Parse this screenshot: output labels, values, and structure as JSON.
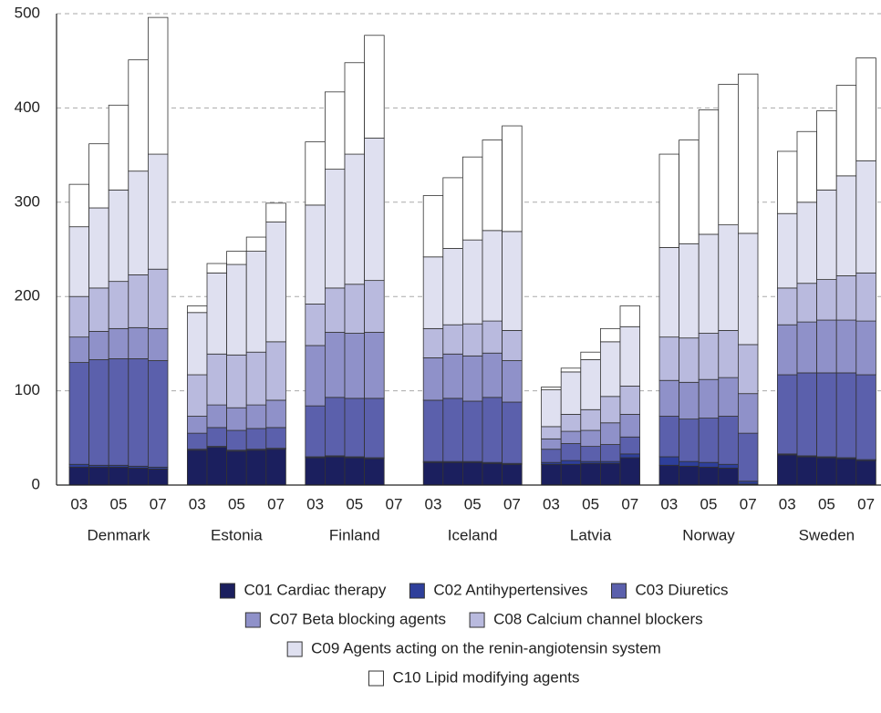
{
  "chart_data": {
    "type": "bar",
    "stacked": true,
    "groups": [
      "Denmark",
      "Estonia",
      "Finland",
      "Iceland",
      "Latvia",
      "Norway",
      "Sweden"
    ],
    "categories": [
      "03",
      null,
      "05",
      null,
      "07",
      "03",
      null,
      "05",
      null,
      "07",
      "03",
      null,
      "05",
      null,
      "07",
      "03",
      null,
      "05",
      null,
      "07",
      "03",
      null,
      "05",
      null,
      "07",
      "03",
      null,
      "05",
      null,
      "07",
      "03",
      null,
      "05",
      null,
      "07"
    ],
    "ylim": [
      0,
      500
    ],
    "yticks": [
      0,
      100,
      200,
      300,
      400,
      500
    ],
    "grid": true,
    "series": [
      {
        "name": "C01 Cardiac therapy",
        "color": "#1b1f5e",
        "values": [
          19,
          19,
          19,
          18,
          17,
          37,
          40,
          36,
          37,
          38,
          29,
          30,
          29,
          28,
          null,
          24,
          24,
          24,
          23,
          22,
          22,
          22,
          23,
          23,
          29,
          21,
          20,
          19,
          18,
          1,
          32,
          30,
          29,
          28,
          26
        ]
      },
      {
        "name": "C02 Antihypertensives",
        "color": "#2e3f9b",
        "values": [
          3,
          2,
          2,
          2,
          2,
          1,
          1,
          1,
          1,
          1,
          1,
          1,
          1,
          1,
          null,
          1,
          1,
          1,
          1,
          1,
          2,
          4,
          2,
          2,
          4,
          9,
          5,
          5,
          4,
          3,
          1,
          1,
          1,
          1,
          1
        ]
      },
      {
        "name": "C03 Diuretics",
        "color": "#5b60ac",
        "values": [
          108,
          112,
          113,
          114,
          113,
          17,
          20,
          21,
          22,
          22,
          54,
          62,
          62,
          63,
          null,
          65,
          67,
          64,
          69,
          65,
          14,
          18,
          16,
          18,
          18,
          43,
          45,
          47,
          51,
          51,
          84,
          88,
          89,
          90,
          90
        ]
      },
      {
        "name": "C07 Beta blocking agents",
        "color": "#8f91c9",
        "values": [
          27,
          30,
          32,
          33,
          34,
          18,
          24,
          24,
          25,
          29,
          64,
          69,
          69,
          70,
          null,
          45,
          47,
          48,
          47,
          44,
          11,
          13,
          17,
          23,
          24,
          38,
          39,
          41,
          41,
          42,
          53,
          54,
          56,
          56,
          57
        ]
      },
      {
        "name": "C08 Calcium channel blockers",
        "color": "#b9bade",
        "values": [
          43,
          46,
          50,
          56,
          63,
          44,
          54,
          56,
          56,
          62,
          44,
          47,
          52,
          55,
          null,
          31,
          31,
          34,
          34,
          32,
          13,
          18,
          22,
          28,
          30,
          46,
          47,
          49,
          50,
          52,
          39,
          41,
          43,
          47,
          51
        ]
      },
      {
        "name": "C09 Agents acting on the renin-angiotensin system",
        "color": "#dfe0f0",
        "values": [
          74,
          85,
          97,
          110,
          122,
          66,
          86,
          96,
          107,
          127,
          105,
          126,
          138,
          151,
          null,
          76,
          81,
          89,
          96,
          105,
          39,
          45,
          53,
          58,
          63,
          95,
          100,
          105,
          112,
          118,
          79,
          86,
          95,
          106,
          119
        ]
      },
      {
        "name": "C10 Lipid modifying agents",
        "color": "#ffffff",
        "values": [
          45,
          68,
          90,
          118,
          145,
          7,
          10,
          14,
          15,
          20,
          67,
          82,
          97,
          109,
          null,
          65,
          75,
          88,
          96,
          112,
          3,
          4,
          8,
          14,
          22,
          99,
          110,
          132,
          149,
          169,
          66,
          75,
          84,
          96,
          109
        ]
      }
    ]
  }
}
